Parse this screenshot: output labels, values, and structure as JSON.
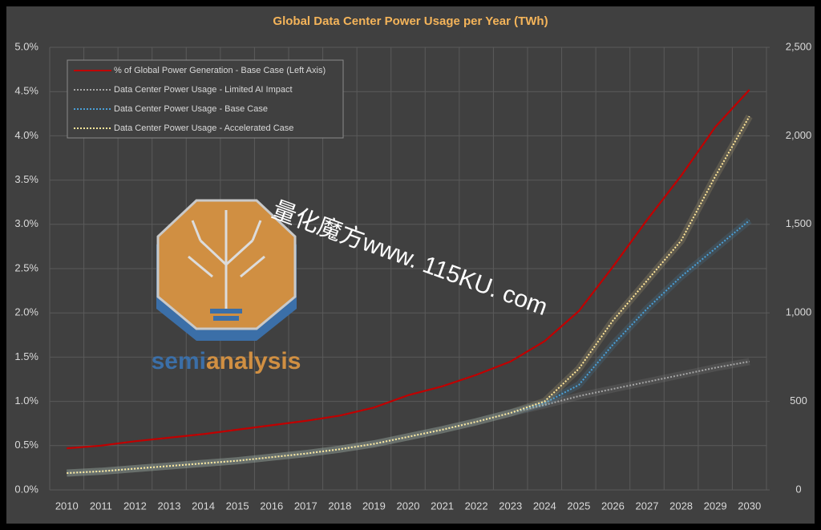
{
  "chart_data": {
    "type": "line",
    "title": "Global Data Center Power Usage per Year (TWh)",
    "categories": [
      "2010",
      "2011",
      "2012",
      "2013",
      "2014",
      "2015",
      "2016",
      "2017",
      "2018",
      "2019",
      "2020",
      "2021",
      "2022",
      "2023",
      "2024",
      "2025",
      "2026",
      "2027",
      "2028",
      "2029",
      "2030"
    ],
    "ylim": [
      0,
      5
    ],
    "yticks": [
      {
        "value": 0,
        "label": "0.0%"
      },
      {
        "value": 0.5,
        "label": "0.5%"
      },
      {
        "value": 1,
        "label": "1.0%"
      },
      {
        "value": 1.5,
        "label": "1.5%"
      },
      {
        "value": 2,
        "label": "2.0%"
      },
      {
        "value": 2.5,
        "label": "2.5%"
      },
      {
        "value": 3,
        "label": "3.0%"
      },
      {
        "value": 3.5,
        "label": "3.5%"
      },
      {
        "value": 4,
        "label": "4.0%"
      },
      {
        "value": 4.5,
        "label": "4.5%"
      },
      {
        "value": 5,
        "label": "5.0%"
      }
    ],
    "y2lim": [
      0,
      2500
    ],
    "y2ticks": [
      0,
      500,
      {
        "value": 1000,
        "label": "1,000"
      },
      {
        "value": 1500,
        "label": "1,500"
      },
      {
        "value": 2000,
        "label": "2,000"
      },
      {
        "value": 2500,
        "label": "2,500"
      }
    ],
    "grid": true,
    "legend": "top-left",
    "series": [
      {
        "name": "% of Global Power Generation - Base Case (Left Axis)",
        "color": "#c00000",
        "dash": false,
        "values": [
          0.47,
          0.5,
          0.55,
          0.59,
          0.63,
          0.68,
          0.73,
          0.78,
          0.84,
          0.93,
          1.07,
          1.17,
          1.3,
          1.45,
          1.68,
          2.02,
          2.52,
          3.05,
          3.55,
          4.1,
          4.52
        ]
      },
      {
        "name": "Data Center Power Usage - Limited AI Impact",
        "color": "#a6a6a6",
        "dash": true,
        "axis": "y2",
        "values": [
          95,
          105,
          120,
          135,
          150,
          165,
          185,
          205,
          230,
          260,
          300,
          340,
          385,
          435,
          480,
          530,
          570,
          610,
          650,
          690,
          725
        ]
      },
      {
        "name": "Data Center Power Usage - Base Case",
        "color": "#4a9fd6",
        "dash": true,
        "axis": "y2",
        "values": [
          95,
          105,
          120,
          135,
          150,
          165,
          185,
          205,
          230,
          260,
          300,
          340,
          385,
          435,
          490,
          593,
          820,
          1023,
          1205,
          1363,
          1522
        ]
      },
      {
        "name": "Data Center Power Usage - Accelerated Case",
        "color": "#ffe699",
        "dash": true,
        "axis": "y2",
        "values": [
          95,
          105,
          120,
          135,
          150,
          165,
          185,
          205,
          230,
          260,
          300,
          340,
          385,
          435,
          500,
          684,
          956,
          1182,
          1408,
          1771,
          2110
        ]
      }
    ]
  },
  "watermark": "量化魔方www. 115KU. com",
  "logo": [
    "semi",
    "analysis"
  ]
}
